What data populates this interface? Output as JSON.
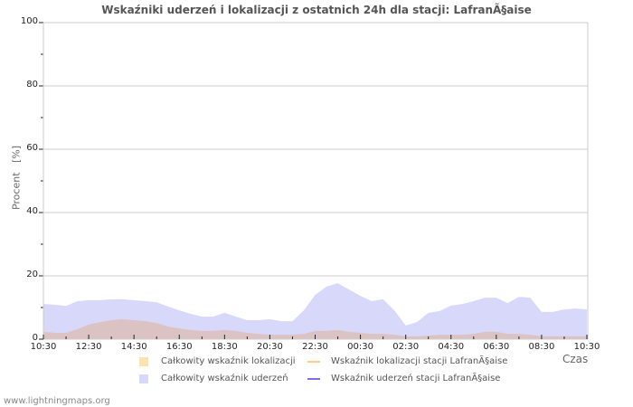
{
  "chart_data": {
    "type": "area",
    "title": "Wskaźniki uderzeń i lokalizacji z ostatnich 24h dla stacji: LafranÃ§aise",
    "xlabel": "Czas",
    "ylabel": "Procent   [%]",
    "ylim": [
      0,
      100
    ],
    "yticks": [
      "0",
      "20",
      "40",
      "60",
      "80",
      "100"
    ],
    "xticks": [
      "10:30",
      "12:30",
      "14:30",
      "16:30",
      "18:30",
      "20:30",
      "22:30",
      "00:30",
      "02:30",
      "04:30",
      "06:30",
      "08:30",
      "10:30"
    ],
    "grid": true,
    "legend_position": "bottom",
    "x": [
      "10:30",
      "11:00",
      "11:30",
      "12:00",
      "12:30",
      "13:00",
      "13:30",
      "14:00",
      "14:30",
      "15:00",
      "15:30",
      "16:00",
      "16:30",
      "17:00",
      "17:30",
      "18:00",
      "18:30",
      "19:00",
      "19:30",
      "20:00",
      "20:30",
      "21:00",
      "21:30",
      "22:00",
      "22:30",
      "23:00",
      "23:30",
      "00:00",
      "00:30",
      "01:00",
      "01:30",
      "02:00",
      "02:30",
      "03:00",
      "03:30",
      "04:00",
      "04:30",
      "05:00",
      "05:30",
      "06:00",
      "06:30",
      "07:00",
      "07:30",
      "08:00",
      "08:30",
      "09:00",
      "09:30",
      "10:00",
      "10:30"
    ],
    "series": [
      {
        "name": "Całkowity wskaźnik uderzeń",
        "color": "#d8d8fb",
        "values": [
          11.1,
          10.9,
          10.5,
          12.0,
          12.3,
          12.3,
          12.6,
          12.6,
          12.3,
          12.0,
          11.7,
          10.3,
          9.1,
          8.0,
          7.1,
          7.1,
          8.3,
          7.1,
          6.0,
          6.0,
          6.3,
          5.7,
          5.7,
          9.1,
          14.0,
          16.6,
          17.7,
          15.7,
          13.7,
          12.0,
          12.6,
          9.1,
          4.3,
          5.4,
          8.3,
          8.9,
          10.6,
          11.1,
          12.0,
          13.1,
          13.1,
          11.4,
          13.4,
          13.1,
          8.6,
          8.6,
          9.4,
          9.7,
          9.4
        ]
      },
      {
        "name": "Całkowity wskaźnik lokalizacji",
        "color": "#fde2b0",
        "values": [
          2.3,
          2.0,
          2.0,
          3.1,
          4.6,
          5.4,
          6.0,
          6.3,
          6.0,
          5.7,
          5.1,
          4.0,
          3.4,
          2.9,
          2.6,
          2.6,
          2.9,
          2.6,
          2.0,
          1.7,
          1.4,
          1.4,
          1.4,
          1.7,
          2.6,
          2.6,
          2.9,
          2.3,
          2.0,
          1.7,
          1.7,
          1.4,
          0.9,
          0.9,
          1.1,
          1.4,
          1.4,
          1.4,
          1.7,
          2.3,
          2.3,
          1.7,
          1.7,
          1.4,
          0.9,
          0.9,
          0.9,
          0.9,
          0.9
        ]
      },
      {
        "name": "Wskaźnik lokalizacji stacji LafranÃ§aise",
        "color": "#fdcf7f",
        "values": []
      },
      {
        "name": "Wskaźnik uderzeń stacji LafranÃ§aise",
        "color": "#7a70e0",
        "values": []
      }
    ]
  },
  "legend": {
    "items": [
      {
        "label": "Całkowity wskaźnik lokalizacji",
        "kind": "box",
        "color": "#fde2b0"
      },
      {
        "label": "Wskaźnik lokalizacji stacji LafranÃ§aise",
        "kind": "line",
        "color": "#fdcf7f"
      },
      {
        "label": "Całkowity wskaźnik uderzeń",
        "kind": "box",
        "color": "#d8d8fb"
      },
      {
        "label": "Wskaźnik uderzeń stacji LafranÃ§aise",
        "kind": "line",
        "color": "#7a70e0"
      }
    ]
  },
  "footer": {
    "text": "www.lightningmaps.org"
  }
}
